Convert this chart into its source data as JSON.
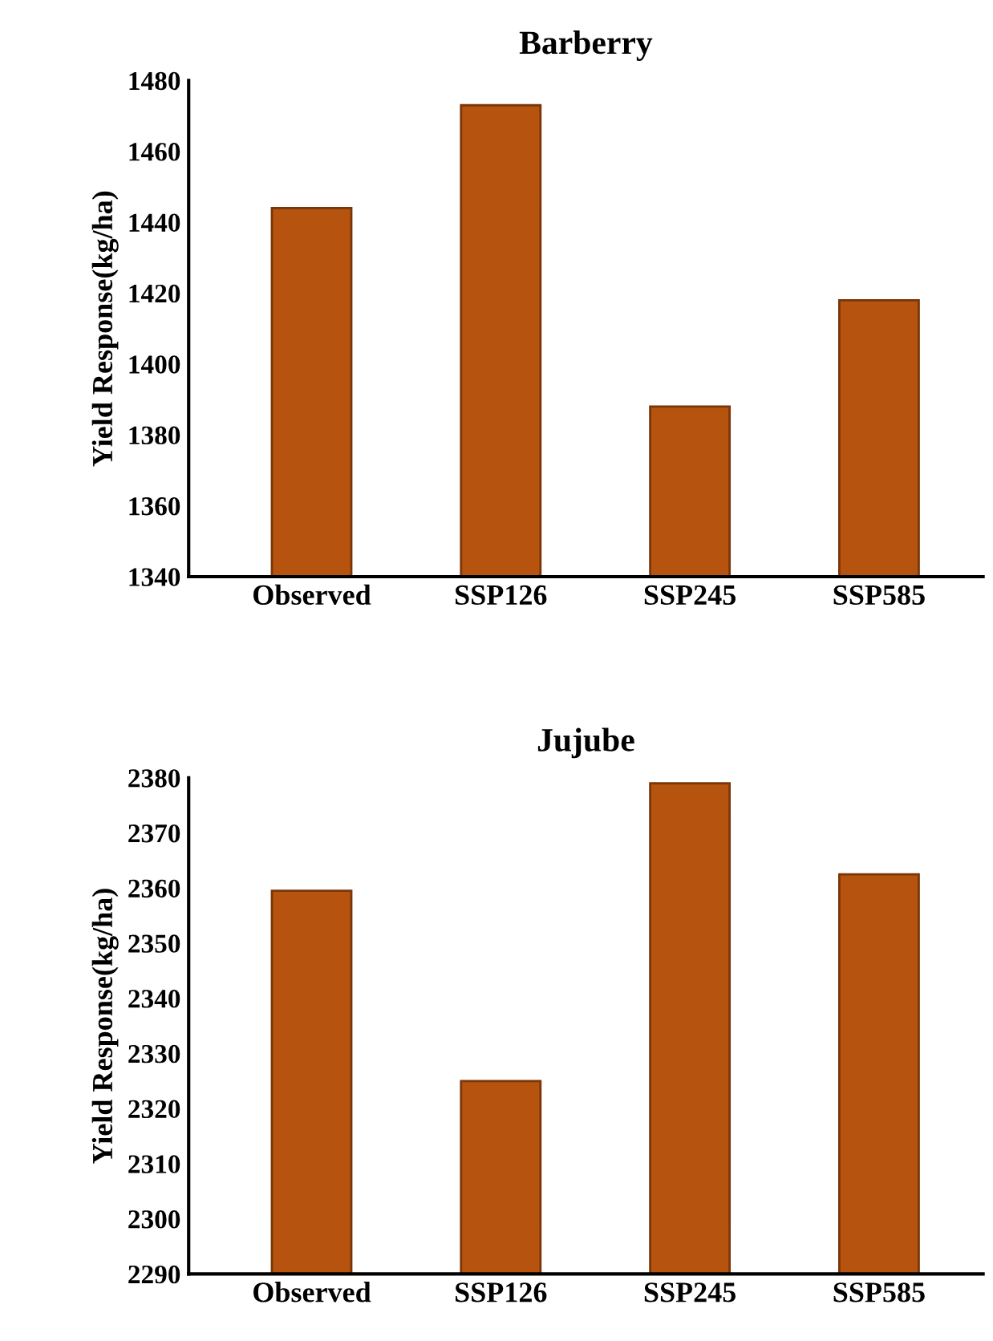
{
  "chart_data": [
    {
      "type": "bar",
      "title": "Barberry",
      "ylabel": "Yield Response(kg/ha)",
      "categories": [
        "Observed",
        "SSP126",
        "SSP245",
        "SSP585"
      ],
      "values": [
        1444,
        1473,
        1388,
        1418
      ],
      "color": "#b5530f",
      "ylim": [
        1340,
        1480
      ],
      "yticks": [
        1340,
        1360,
        1380,
        1400,
        1420,
        1440,
        1460,
        1480
      ],
      "grid": false,
      "legend": false
    },
    {
      "type": "bar",
      "title": "Jujube",
      "ylabel": "Yield Response(kg/ha)",
      "categories": [
        "Observed",
        "SSP126",
        "SSP245",
        "SSP585"
      ],
      "values": [
        2359.5,
        2325,
        2379,
        2362.5
      ],
      "color": "#b5530f",
      "ylim": [
        2290,
        2380
      ],
      "yticks": [
        2290,
        2300,
        2310,
        2320,
        2330,
        2340,
        2350,
        2360,
        2370,
        2380
      ],
      "grid": false,
      "legend": false
    }
  ]
}
